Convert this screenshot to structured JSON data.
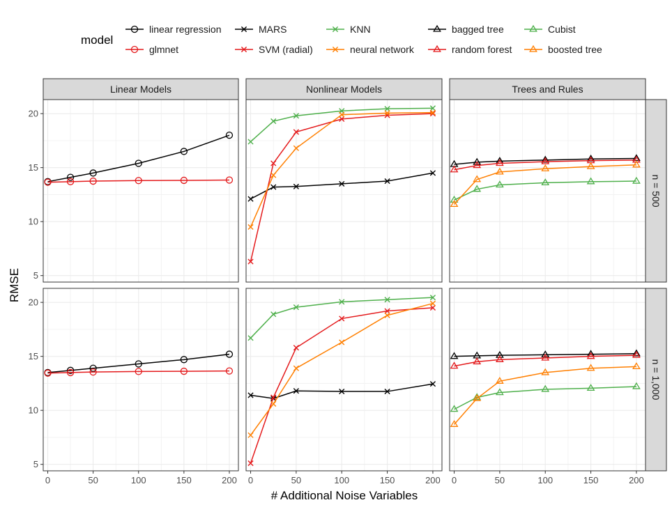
{
  "chart_data": {
    "type": "line",
    "xlabel": "# Additional Noise Variables",
    "ylabel": "RMSE",
    "x": [
      0,
      25,
      50,
      100,
      150,
      200
    ],
    "x_ticks": [
      0,
      50,
      100,
      150,
      200
    ],
    "x_tick_labels": [
      "0",
      "50",
      "100",
      "150",
      "200"
    ],
    "xlim": [
      -5,
      210
    ],
    "ylim": [
      4.4,
      21.3
    ],
    "y_ticks": [
      5,
      10,
      15,
      20
    ],
    "y_tick_labels": [
      "5",
      "10",
      "15",
      "20"
    ],
    "grid": true,
    "legend": {
      "title": "model",
      "position": "top",
      "entries": [
        {
          "name": "linear regression",
          "color": "#000000",
          "marker": "circle"
        },
        {
          "name": "glmnet",
          "color": "#e41a1c",
          "marker": "circle"
        },
        {
          "name": "MARS",
          "color": "#000000",
          "marker": "x"
        },
        {
          "name": "SVM (radial)",
          "color": "#e41a1c",
          "marker": "x"
        },
        {
          "name": "KNN",
          "color": "#4daf4a",
          "marker": "x"
        },
        {
          "name": "neural network",
          "color": "#ff7f00",
          "marker": "x"
        },
        {
          "name": "bagged tree",
          "color": "#000000",
          "marker": "triangle"
        },
        {
          "name": "random forest",
          "color": "#e41a1c",
          "marker": "triangle"
        },
        {
          "name": "Cubist",
          "color": "#4daf4a",
          "marker": "triangle"
        },
        {
          "name": "boosted tree",
          "color": "#ff7f00",
          "marker": "triangle"
        }
      ]
    },
    "columns": [
      "Linear Models",
      "Nonlinear Models",
      "Trees and Rules"
    ],
    "rows": [
      "n = 500",
      "n = 1,000"
    ],
    "panels": [
      {
        "row": 0,
        "col": 0,
        "series": [
          {
            "name": "linear regression",
            "values": [
              13.7,
              14.1,
              14.5,
              15.4,
              16.5,
              18.0
            ]
          },
          {
            "name": "glmnet",
            "values": [
              13.65,
              13.7,
              13.75,
              13.8,
              13.82,
              13.85
            ]
          }
        ]
      },
      {
        "row": 0,
        "col": 1,
        "series": [
          {
            "name": "MARS",
            "values": [
              12.1,
              13.2,
              13.25,
              13.5,
              13.75,
              14.5
            ]
          },
          {
            "name": "SVM (radial)",
            "values": [
              6.3,
              15.4,
              18.3,
              19.5,
              19.85,
              20.0
            ]
          },
          {
            "name": "KNN",
            "values": [
              17.4,
              19.3,
              19.8,
              20.25,
              20.45,
              20.5
            ]
          },
          {
            "name": "neural network",
            "values": [
              9.5,
              14.3,
              16.8,
              19.9,
              20.05,
              20.1
            ]
          }
        ]
      },
      {
        "row": 0,
        "col": 2,
        "series": [
          {
            "name": "bagged tree",
            "values": [
              15.3,
              15.5,
              15.6,
              15.7,
              15.8,
              15.85
            ]
          },
          {
            "name": "random forest",
            "values": [
              14.8,
              15.2,
              15.4,
              15.55,
              15.65,
              15.7
            ]
          },
          {
            "name": "Cubist",
            "values": [
              12.0,
              13.0,
              13.4,
              13.6,
              13.7,
              13.75
            ]
          },
          {
            "name": "boosted tree",
            "values": [
              11.6,
              13.9,
              14.6,
              14.9,
              15.1,
              15.25
            ]
          }
        ]
      },
      {
        "row": 1,
        "col": 0,
        "series": [
          {
            "name": "linear regression",
            "values": [
              13.5,
              13.7,
              13.9,
              14.3,
              14.7,
              15.2
            ]
          },
          {
            "name": "glmnet",
            "values": [
              13.45,
              13.5,
              13.55,
              13.6,
              13.62,
              13.65
            ]
          }
        ]
      },
      {
        "row": 1,
        "col": 1,
        "series": [
          {
            "name": "MARS",
            "values": [
              11.4,
              11.1,
              11.8,
              11.75,
              11.75,
              12.45
            ]
          },
          {
            "name": "SVM (radial)",
            "values": [
              5.1,
              11.2,
              15.8,
              18.5,
              19.2,
              19.5
            ]
          },
          {
            "name": "KNN",
            "values": [
              16.7,
              18.9,
              19.55,
              20.05,
              20.25,
              20.45
            ]
          },
          {
            "name": "neural network",
            "values": [
              7.7,
              10.6,
              13.9,
              16.3,
              18.8,
              19.9
            ]
          }
        ]
      },
      {
        "row": 1,
        "col": 2,
        "series": [
          {
            "name": "bagged tree",
            "values": [
              15.0,
              15.05,
              15.1,
              15.15,
              15.2,
              15.25
            ]
          },
          {
            "name": "random forest",
            "values": [
              14.1,
              14.5,
              14.7,
              14.85,
              15.0,
              15.1
            ]
          },
          {
            "name": "Cubist",
            "values": [
              10.1,
              11.2,
              11.65,
              11.95,
              12.05,
              12.2
            ]
          },
          {
            "name": "boosted tree",
            "values": [
              8.7,
              11.1,
              12.7,
              13.5,
              13.9,
              14.05
            ]
          }
        ]
      }
    ]
  }
}
